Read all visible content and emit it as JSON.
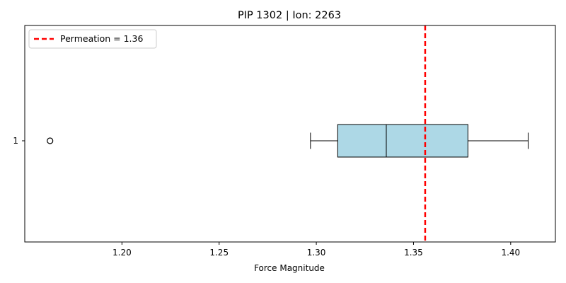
{
  "chart_data": {
    "type": "box",
    "title": "PIP 1302 | Ion: 2263",
    "xlabel": "Force Magnitude",
    "ylabel": "",
    "orientation": "horizontal",
    "xlim": [
      1.15,
      1.423
    ],
    "xticks": [
      1.2,
      1.25,
      1.3,
      1.35,
      1.4
    ],
    "xtick_labels": [
      "1.20",
      "1.25",
      "1.30",
      "1.35",
      "1.40"
    ],
    "categories": [
      "1"
    ],
    "box": {
      "whisker_low": 1.297,
      "q1": 1.311,
      "median": 1.336,
      "q3": 1.378,
      "whisker_high": 1.409,
      "outliers": [
        1.163
      ],
      "fill_color": "#add8e6"
    },
    "reference_line": {
      "label": "Permeation = 1.36",
      "value": 1.356,
      "color": "#ff0000",
      "style": "dashed"
    },
    "legend_position": "top-left",
    "grid": false
  }
}
